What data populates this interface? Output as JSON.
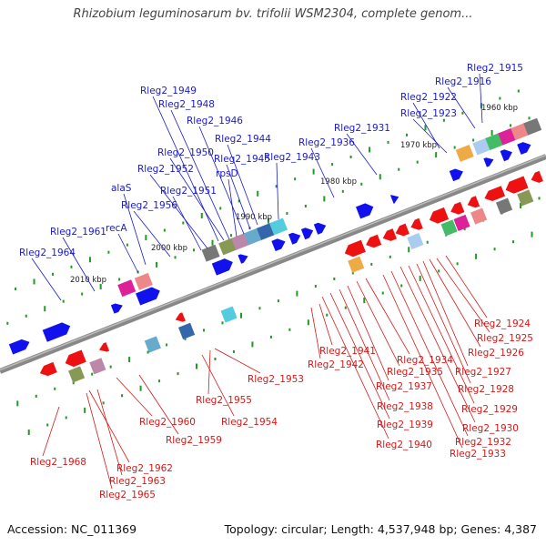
{
  "title": "Rhizobium leguminosarum bv. trifolii WSM2304, complete genom...",
  "accession": "Accession: NC_011369",
  "summary": "Topology: circular; Length: 4,537,948 bp; Genes: 4,387",
  "colors": {
    "forward_label": "#1a1acc",
    "reverse_label": "#d81818",
    "forward_gene": "#1111ee",
    "reverse_gene": "#ee1111",
    "backbone": "#888888",
    "tick": "#229922"
  },
  "kbp_labels": [
    "2010 kbp",
    "2000 kbp",
    "1990 kbp",
    "1980 kbp",
    "1970 kbp",
    "1960 kbp"
  ],
  "forward_labels": [
    "Rleg2_1915",
    "Rleg2_1916",
    "Rleg2_1922",
    "Rleg2_1923",
    "Rleg2_1931",
    "Rleg2_1936",
    "Rleg2_1949",
    "Rleg2_1948",
    "Rleg2_1946",
    "Rleg2_1944",
    "Rleg2_1950",
    "Rleg2_1945",
    "Rleg2_1943",
    "Rleg2_1952",
    "rpsD",
    "Rleg2_1951",
    "alaS",
    "Rleg2_1956",
    "recA",
    "Rleg2_1961",
    "Rleg2_1964"
  ],
  "reverse_labels": [
    "Rleg2_1924",
    "Rleg2_1925",
    "Rleg2_1926",
    "Rleg2_1927",
    "Rleg2_1928",
    "Rleg2_1929",
    "Rleg2_1930",
    "Rleg2_1932",
    "Rleg2_1933",
    "Rleg2_1934",
    "Rleg2_1935",
    "Rleg2_1937",
    "Rleg2_1938",
    "Rleg2_1939",
    "Rleg2_1940",
    "Rleg2_1941",
    "Rleg2_1942",
    "Rleg2_1953",
    "Rleg2_1954",
    "Rleg2_1955",
    "Rleg2_1959",
    "Rleg2_1960",
    "Rleg2_1962",
    "Rleg2_1963",
    "Rleg2_1965",
    "Rleg2_1968"
  ]
}
